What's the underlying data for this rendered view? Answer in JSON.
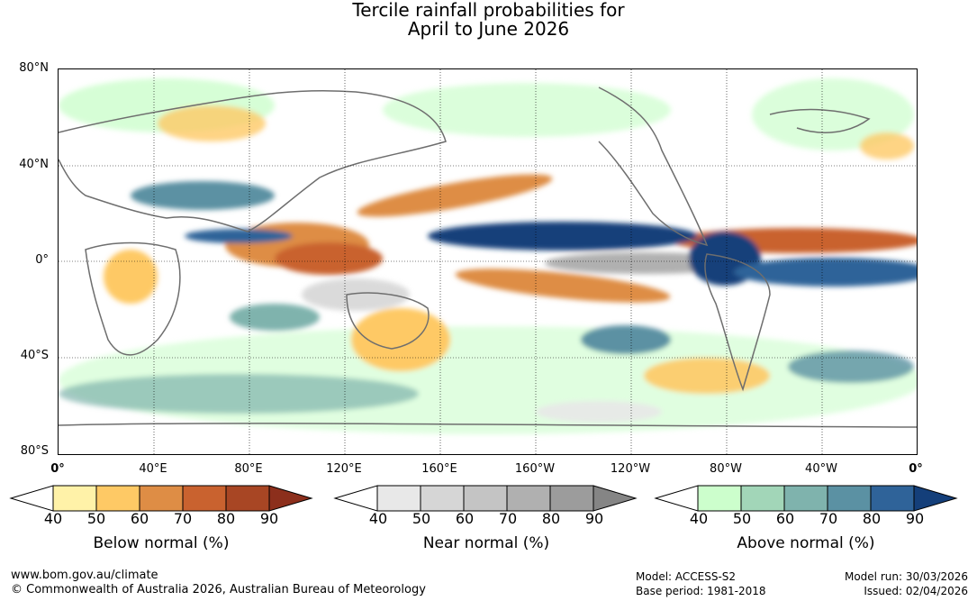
{
  "title": {
    "line1": "Tercile rainfall probabilities for",
    "line2": "April to June 2026"
  },
  "map": {
    "y_labels": [
      "80°N",
      "40°N",
      "0°",
      "40°S",
      "80°S"
    ],
    "x_labels": [
      "0°",
      "40°E",
      "80°E",
      "120°E",
      "160°E",
      "160°W",
      "120°W",
      "80°W",
      "40°W",
      "0°"
    ]
  },
  "legends": [
    {
      "name": "below",
      "title": "Below normal (%)",
      "ticks": [
        "40",
        "50",
        "60",
        "70",
        "80",
        "90"
      ],
      "colors": [
        "#fff2a8",
        "#fec965",
        "#de8d45",
        "#c9622f",
        "#a84624",
        "#8c2f1c"
      ]
    },
    {
      "name": "near",
      "title": "Near normal (%)",
      "ticks": [
        "40",
        "50",
        "60",
        "70",
        "80",
        "90"
      ],
      "colors": [
        "#e8e8e8",
        "#d6d6d6",
        "#c4c4c4",
        "#b0b0b0",
        "#9c9c9c",
        "#858585"
      ]
    },
    {
      "name": "above",
      "title": "Above normal (%)",
      "ticks": [
        "40",
        "50",
        "60",
        "70",
        "80",
        "90"
      ],
      "colors": [
        "#ccfecc",
        "#a2d6b8",
        "#7fb3ad",
        "#5b91a3",
        "#2f6399",
        "#143f7a"
      ]
    }
  ],
  "footer": {
    "url": "www.bom.gov.au/climate",
    "copyright": "© Commonwealth of Australia 2026, Australian Bureau of Meteorology",
    "model": "Model: ACCESS-S2",
    "base_period": "Base period: 1981-2018",
    "model_run": "Model run: 30/03/2026",
    "issued": "Issued: 02/04/2026"
  }
}
